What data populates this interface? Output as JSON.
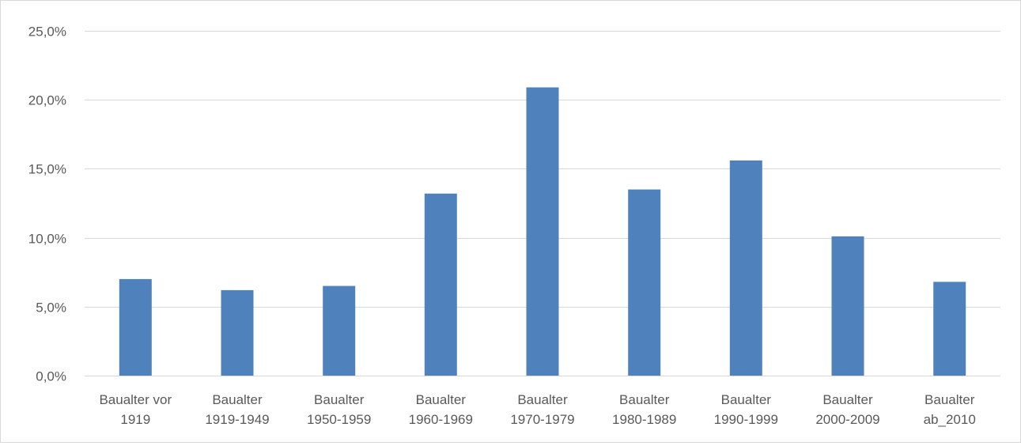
{
  "chart_data": {
    "type": "bar",
    "title": "",
    "xlabel": "",
    "ylabel": "",
    "categories": [
      [
        "Baualter vor",
        "1919"
      ],
      [
        "Baualter",
        "1919-1949"
      ],
      [
        "Baualter",
        "1950-1959"
      ],
      [
        "Baualter",
        "1960-1969"
      ],
      [
        "Baualter",
        "1970-1979"
      ],
      [
        "Baualter",
        "1980-1989"
      ],
      [
        "Baualter",
        "1990-1999"
      ],
      [
        "Baualter",
        "2000-2009"
      ],
      [
        "Baualter",
        "ab_2010"
      ]
    ],
    "values": [
      7.0,
      6.2,
      6.5,
      13.2,
      20.9,
      13.5,
      15.6,
      10.1,
      6.8
    ],
    "ylim": [
      0,
      25
    ],
    "yticks": [
      0,
      5,
      10,
      15,
      20,
      25
    ],
    "ytick_labels": [
      "0,0%",
      "5,0%",
      "10,0%",
      "15,0%",
      "20,0%",
      "25,0%"
    ],
    "grid": true,
    "legend": "none",
    "bar_color": "#4f81bd",
    "grid_color": "#d9d9d9"
  }
}
